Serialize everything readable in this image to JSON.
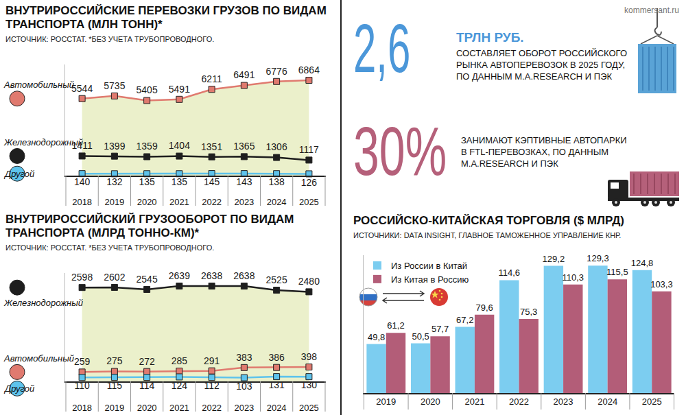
{
  "site": "kommersant.ru",
  "chart_data": [
    {
      "type": "line",
      "title": "ВНУТРИРОССИЙСКИЕ ПЕРЕВОЗКИ ГРУЗОВ ПО ВИДАМ ТРАНСПОРТА (МЛН ТОНН)*",
      "subtitle": "ИСТОЧНИК: РОССТАТ. *БЕЗ УЧЕТА ТРУБОПРОВОДНОГО.",
      "categories": [
        "2018",
        "2019",
        "2020",
        "2021",
        "2022",
        "2023",
        "2024",
        "2025"
      ],
      "series": [
        {
          "name": "Автомобильный",
          "color": "#e07a6f",
          "values": [
            5544,
            5735,
            5405,
            5491,
            6211,
            6491,
            6776,
            6864
          ]
        },
        {
          "name": "Железнодорожный",
          "color": "#1e1e1e",
          "values": [
            1411,
            1399,
            1359,
            1404,
            1351,
            1365,
            1306,
            1117
          ]
        },
        {
          "name": "Другой",
          "color": "#5ec3ec",
          "values": [
            140,
            132,
            135,
            135,
            145,
            143,
            138,
            126
          ]
        }
      ],
      "ylim": [
        0,
        8000
      ],
      "yticks": [],
      "grid": false,
      "tick_labels": "x",
      "data_labels": true,
      "marker": "square"
    },
    {
      "type": "line",
      "title": "ВНУТРИРОССИЙСКИЙ ГРУЗООБОРОТ ПО ВИДАМ ТРАНСПОРТА (МЛРД ТОННО-КМ)*",
      "subtitle": "ИСТОЧНИК: РОССТАТ. *БЕЗ УЧЕТА ТРУБОПРОВОДНОГО.",
      "categories": [
        "2018",
        "2019",
        "2020",
        "2021",
        "2022",
        "2023",
        "2024",
        "2025"
      ],
      "series": [
        {
          "name": "Железнодорожный",
          "color": "#1e1e1e",
          "values": [
            2598,
            2602,
            2545,
            2639,
            2638,
            2638,
            2525,
            2480
          ]
        },
        {
          "name": "Автомобильный",
          "color": "#e07a6f",
          "values": [
            259,
            275,
            272,
            285,
            291,
            383,
            386,
            398
          ]
        },
        {
          "name": "Другой",
          "color": "#5ec3ec",
          "values": [
            110,
            115,
            114,
            124,
            112,
            103,
            131,
            130
          ]
        }
      ],
      "ylim": [
        0,
        3000
      ],
      "yticks": [],
      "grid": false,
      "tick_labels": "x",
      "data_labels": true,
      "marker": "square"
    },
    {
      "type": "bar",
      "title": "РОССИЙСКО-КИТАЙСКАЯ ТОРГОВЛЯ ($ МЛРД)",
      "subtitle": "ИСТОЧНИКИ: DATA INSIGHT, ГЛАВНОЕ ТАМОЖЕННОЕ УПРАВЛЕНИЕ КНР.",
      "categories": [
        "2019",
        "2020",
        "2021",
        "2022",
        "2023",
        "2024",
        "2025"
      ],
      "series": [
        {
          "name": "Из России в Китай",
          "color": "#7ccdf0",
          "values": [
            49.8,
            50.5,
            67.2,
            114.6,
            129.2,
            129.3,
            124.8
          ],
          "value_labels": [
            "49,8",
            "50,5",
            "67,2",
            "114,6",
            "129,2",
            "129,3",
            "124,8"
          ]
        },
        {
          "name": "Из Китая в Россию",
          "color": "#b35d78",
          "values": [
            61.2,
            57.7,
            79.6,
            75.3,
            110.3,
            115.5,
            103.3
          ],
          "value_labels": [
            "61,2",
            "57,7",
            "79,6",
            "75,3",
            "110,3",
            "115,5",
            "103,3"
          ]
        }
      ],
      "ylim": [
        0,
        140
      ],
      "yticks": [],
      "grid": false,
      "tick_labels": "x",
      "data_labels": true,
      "legend": "top-left"
    }
  ],
  "facts": [
    {
      "number": "2,6",
      "unit": "ТРЛН РУБ.",
      "text": "СОСТАВЛЯЕТ ОБОРОТ РОССИЙСКОГО РЫНКА АВТОПЕРЕВОЗОК В 2025 ГОДУ, ПО ДАННЫМ M.A.RESEARCH И ПЭК"
    },
    {
      "number": "30%",
      "text": "ЗАНИМАЮТ КЭПТИВНЫЕ АВТОПАРКИ В FTL-ПЕРЕВОЗКАХ, ПО ДАННЫМ M.A.RESEARCH И ПЭК"
    }
  ]
}
